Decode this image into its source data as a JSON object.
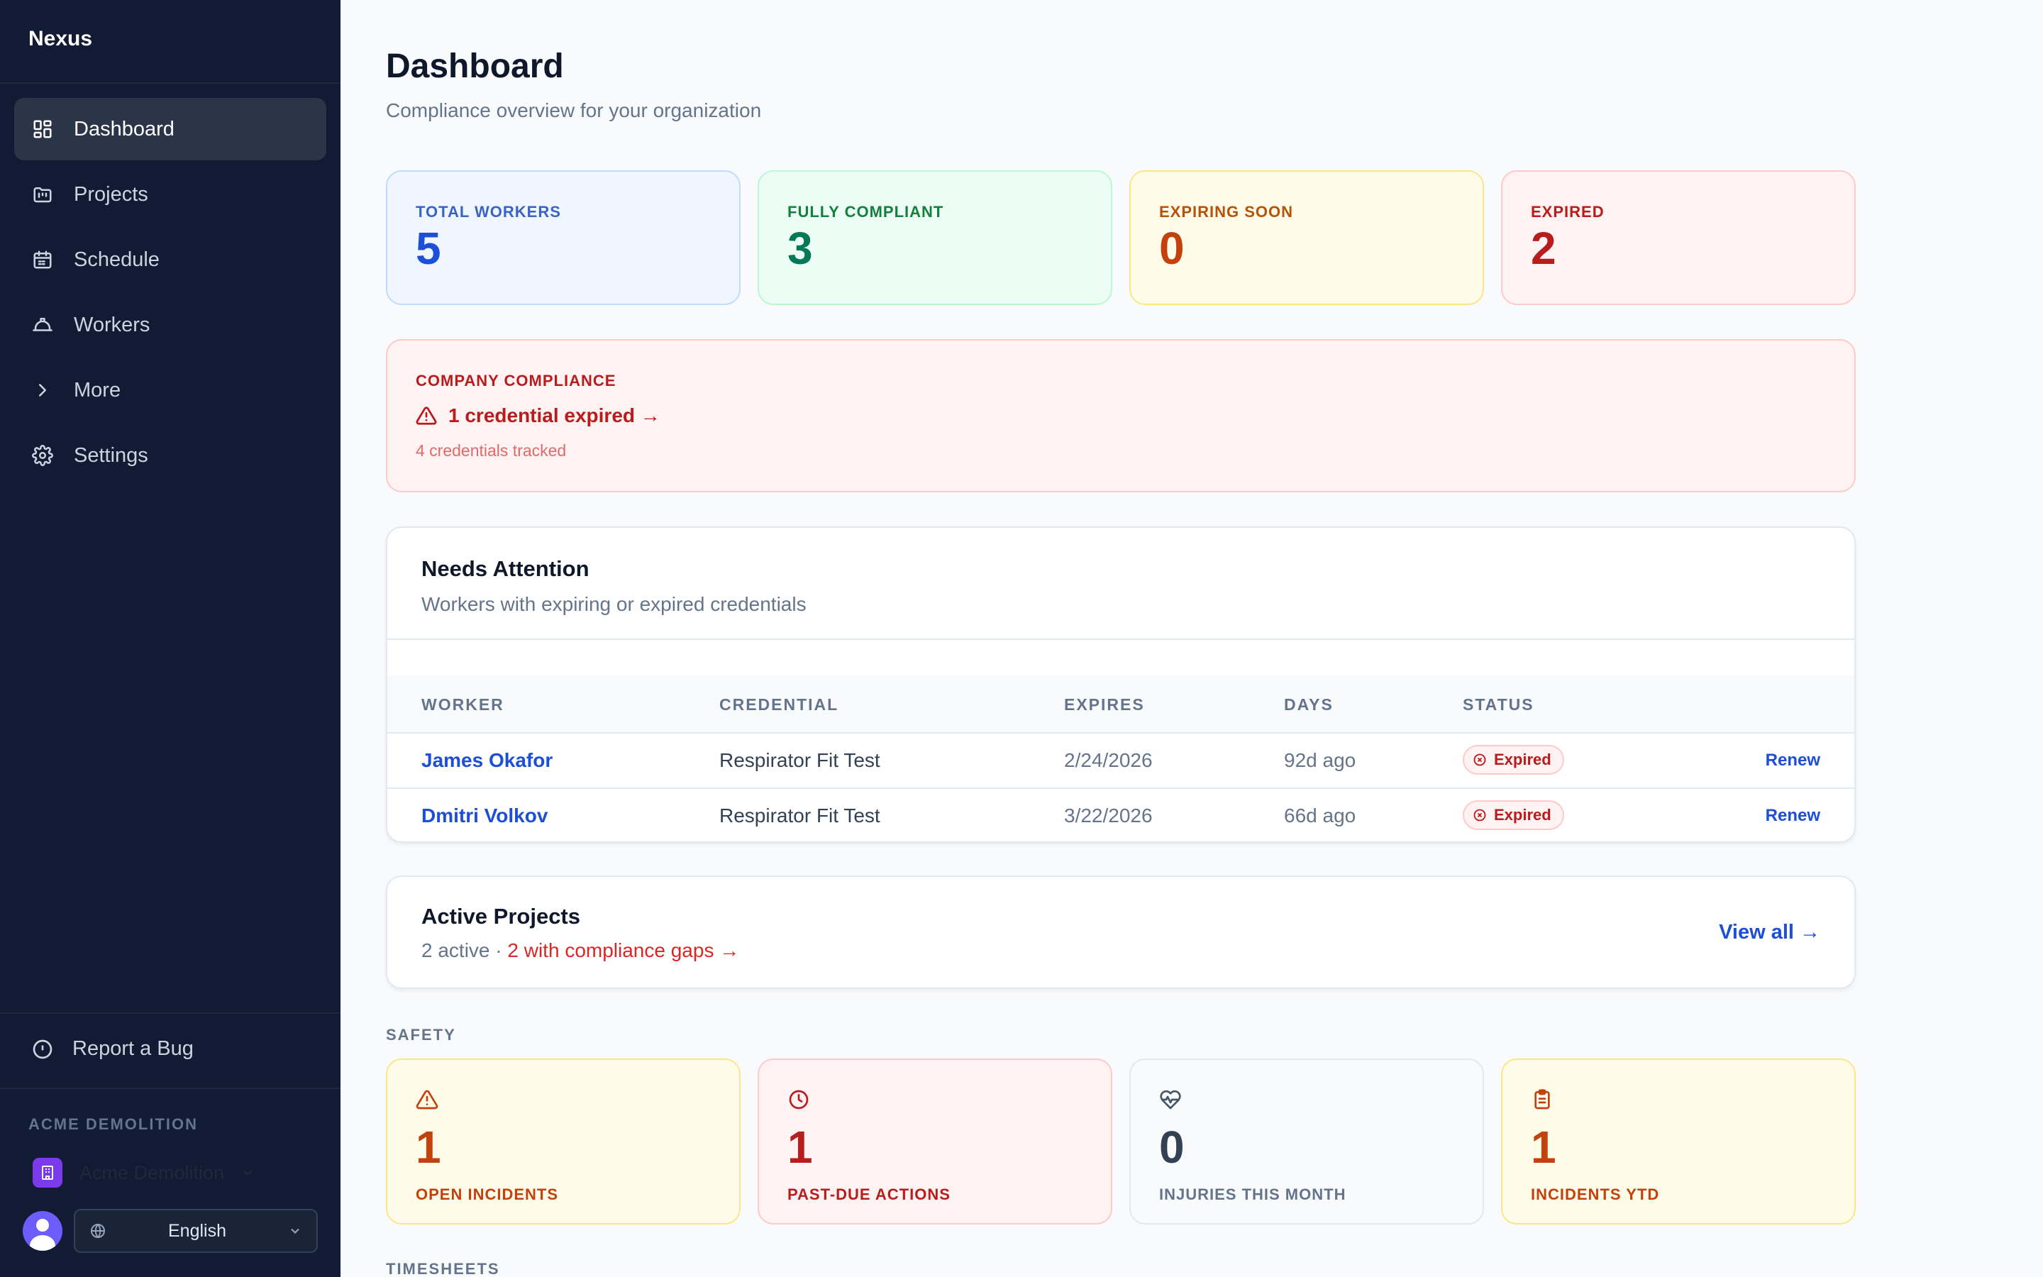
{
  "sidebar": {
    "brand": "Nexus",
    "nav": [
      {
        "label": "Dashboard",
        "icon": "layout-grid-icon"
      },
      {
        "label": "Projects",
        "icon": "folder-icon"
      },
      {
        "label": "Schedule",
        "icon": "calendar-icon"
      },
      {
        "label": "Workers",
        "icon": "hard-hat-icon"
      },
      {
        "label": "More",
        "icon": "chevron-right-icon"
      },
      {
        "label": "Settings",
        "icon": "gear-icon"
      }
    ],
    "report_bug": "Report a Bug",
    "org_section_label": "ACME DEMOLITION",
    "org_name": "Acme Demolition",
    "language": "English"
  },
  "header": {
    "title": "Dashboard",
    "subtitle": "Compliance overview for your organization"
  },
  "stats": {
    "total_workers": {
      "label": "TOTAL WORKERS",
      "value": "5"
    },
    "fully_compliant": {
      "label": "FULLY COMPLIANT",
      "value": "3"
    },
    "expiring_soon": {
      "label": "EXPIRING SOON",
      "value": "0"
    },
    "expired": {
      "label": "EXPIRED",
      "value": "2"
    }
  },
  "company_compliance": {
    "label": "COMPANY COMPLIANCE",
    "headline": "1 credential expired →",
    "tracked": "4 credentials tracked"
  },
  "needs_attention": {
    "title": "Needs Attention",
    "description": "Workers with expiring or expired credentials",
    "columns": [
      "WORKER",
      "CREDENTIAL",
      "EXPIRES",
      "DAYS",
      "STATUS"
    ],
    "rows": [
      {
        "worker": "James Okafor",
        "credential": "Respirator Fit Test",
        "expires": "2/24/2026",
        "days": "92d ago",
        "status": "Expired",
        "action": "Renew"
      },
      {
        "worker": "Dmitri Volkov",
        "credential": "Respirator Fit Test",
        "expires": "3/22/2026",
        "days": "66d ago",
        "status": "Expired",
        "action": "Renew"
      }
    ]
  },
  "active_projects": {
    "title": "Active Projects",
    "active_count": "2 active",
    "separator": " · ",
    "gaps_link": "2 with compliance gaps →",
    "view_all": "View all →"
  },
  "safety": {
    "section_label": "SAFETY",
    "cards": [
      {
        "icon": "warning-triangle-icon",
        "value": "1",
        "label": "OPEN INCIDENTS"
      },
      {
        "icon": "clock-icon",
        "value": "1",
        "label": "PAST-DUE ACTIONS"
      },
      {
        "icon": "heart-pulse-icon",
        "value": "0",
        "label": "INJURIES THIS MONTH"
      },
      {
        "icon": "clipboard-icon",
        "value": "1",
        "label": "INCIDENTS YTD"
      }
    ]
  },
  "timesheets": {
    "section_label": "TIMESHEETS"
  },
  "colors": {
    "sidebar_bg": "#111b33",
    "accent_blue": "#1d4ed8",
    "danger_red": "#b91c1c",
    "warning_orange": "#c2410c",
    "success_green": "#047857",
    "org_badge": "#7c3aed"
  }
}
